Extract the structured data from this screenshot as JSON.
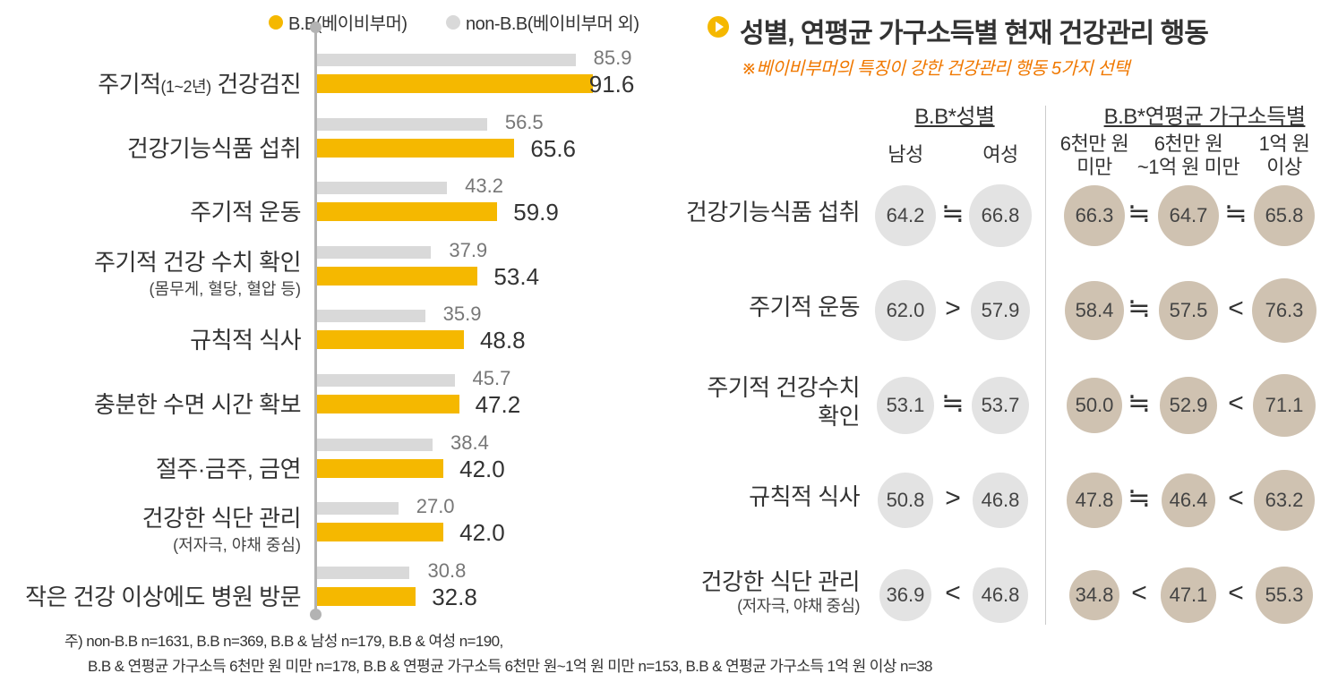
{
  "legend": {
    "bb": {
      "label": "B.B(베이비부머)",
      "color": "#f5b800"
    },
    "nbb": {
      "label": "non-B.B(베이비부머 외)",
      "color": "#d9d9d9"
    }
  },
  "chart_data": [
    {
      "type": "bar",
      "orientation": "horizontal",
      "categories": [
        "주기적(1~2년) 건강검진",
        "건강기능식품 섭취",
        "주기적 운동",
        "주기적 건강 수치 확인",
        "규칙적 식사",
        "충분한 수면 시간 확보",
        "절주·금주, 금연",
        "건강한 식단 관리",
        "작은 건강 이상에도 병원 방문"
      ],
      "category_labels": [
        {
          "main": "주기적",
          "paren": "(1~2년)",
          "tail": " 건강검진",
          "sub": ""
        },
        {
          "main": "건강기능식품 섭취",
          "paren": "",
          "tail": "",
          "sub": ""
        },
        {
          "main": "주기적 운동",
          "paren": "",
          "tail": "",
          "sub": ""
        },
        {
          "main": "주기적 건강 수치 확인",
          "paren": "",
          "tail": "",
          "sub": "(몸무게, 혈당, 혈압 등)"
        },
        {
          "main": "규칙적 식사",
          "paren": "",
          "tail": "",
          "sub": ""
        },
        {
          "main": "충분한 수면 시간 확보",
          "paren": "",
          "tail": "",
          "sub": ""
        },
        {
          "main": "절주·금주, 금연",
          "paren": "",
          "tail": "",
          "sub": ""
        },
        {
          "main": "건강한 식단 관리",
          "paren": "",
          "tail": "",
          "sub": "(저자극, 야채 중심)"
        },
        {
          "main": "작은 건강 이상에도 병원 방문",
          "paren": "",
          "tail": "",
          "sub": ""
        }
      ],
      "series": [
        {
          "name": "non-B.B(베이비부머 외)",
          "color": "#d9d9d9",
          "values": [
            85.9,
            56.5,
            43.2,
            37.9,
            35.9,
            45.7,
            38.4,
            27.0,
            30.8
          ],
          "labels": [
            "85.9",
            "56.5",
            "43.2",
            "37.9",
            "35.9",
            "45.7",
            "38.4",
            "27.0",
            "30.8"
          ]
        },
        {
          "name": "B.B(베이비부머)",
          "color": "#f5b800",
          "values": [
            91.6,
            65.6,
            59.9,
            53.4,
            48.8,
            47.2,
            42.0,
            42.0,
            32.8
          ],
          "labels": [
            "91.6",
            "65.6",
            "59.9",
            "53.4",
            "48.8",
            "47.2",
            "42.0",
            "42.0",
            "32.8"
          ]
        }
      ],
      "xlim": [
        0,
        100
      ]
    },
    {
      "type": "table",
      "title": "성별, 연평균 가구소득별 현재 건강관리 행동",
      "subtitle": "※베이비부머의 특징이 강한 건강관리 행동 5가지 선택",
      "groups": [
        {
          "label": "B.B*성별",
          "columns": [
            "남성",
            "여성"
          ],
          "color": "#e3e3e3"
        },
        {
          "label": "B.B*연평균 가구소득별",
          "columns": [
            "6천만 원 미만",
            "6천만 원 ~1억 원 미만",
            "1억 원 이상"
          ],
          "color": "#cfc2b1"
        }
      ],
      "column_heads": [
        {
          "line1": "남성",
          "line2": ""
        },
        {
          "line1": "여성",
          "line2": ""
        },
        {
          "line1": "6천만 원",
          "line2": "미만"
        },
        {
          "line1": "6천만 원",
          "line2": "~1억 원 미만"
        },
        {
          "line1": "1억 원",
          "line2": "이상"
        }
      ],
      "rows": [
        {
          "label": "건강기능식품 섭취",
          "label2": "",
          "sub": "",
          "values": [
            64.2,
            66.8,
            66.3,
            64.7,
            65.8
          ],
          "labels": [
            "64.2",
            "66.8",
            "66.3",
            "64.7",
            "65.8"
          ],
          "ops": [
            "≒",
            "≒",
            "≒"
          ]
        },
        {
          "label": "주기적 운동",
          "label2": "",
          "sub": "",
          "values": [
            62.0,
            57.9,
            58.4,
            57.5,
            76.3
          ],
          "labels": [
            "62.0",
            "57.9",
            "58.4",
            "57.5",
            "76.3"
          ],
          "ops": [
            ">",
            "≒",
            "<"
          ]
        },
        {
          "label": "주기적 건강수치",
          "label2": "확인",
          "sub": "",
          "values": [
            53.1,
            53.7,
            50.0,
            52.9,
            71.1
          ],
          "labels": [
            "53.1",
            "53.7",
            "50.0",
            "52.9",
            "71.1"
          ],
          "ops": [
            "≒",
            "≒",
            "<"
          ]
        },
        {
          "label": "규칙적 식사",
          "label2": "",
          "sub": "",
          "values": [
            50.8,
            46.8,
            47.8,
            46.4,
            63.2
          ],
          "labels": [
            "50.8",
            "46.8",
            "47.8",
            "46.4",
            "63.2"
          ],
          "ops": [
            ">",
            "≒",
            "<"
          ]
        },
        {
          "label": "건강한 식단 관리",
          "label2": "",
          "sub": "(저자극, 야채 중심)",
          "values": [
            36.9,
            46.8,
            34.8,
            47.1,
            55.3
          ],
          "labels": [
            "36.9",
            "46.8",
            "34.8",
            "47.1",
            "55.3"
          ],
          "ops": [
            "<",
            "<",
            "<"
          ]
        }
      ]
    }
  ],
  "footnote": {
    "line1": "주) non-B.B n=1631, B.B n=369, B.B & 남성 n=179, B.B & 여성 n=190,",
    "line2": "B.B & 연평균 가구소득 6천만 원 미만 n=178, B.B & 연평균 가구소득 6천만 원~1억 원 미만 n=153, B.B & 연평균 가구소득 1억 원 이상 n=38"
  }
}
